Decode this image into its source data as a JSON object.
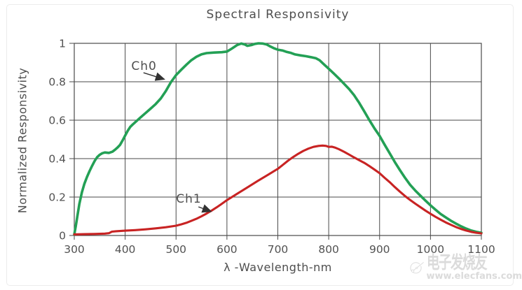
{
  "chart_data": {
    "type": "line",
    "title": "Spectral Responsivity",
    "xlabel": "λ -Wavelength-nm",
    "ylabel": "Normalized Responsivity",
    "xlim": [
      300,
      1100
    ],
    "ylim": [
      0,
      1
    ],
    "x_ticks": [
      300,
      400,
      500,
      600,
      700,
      800,
      900,
      1000,
      1100
    ],
    "y_ticks": [
      0,
      0.2,
      0.4,
      0.6,
      0.8,
      1
    ],
    "y_tick_labels": [
      "0",
      "0.2",
      "0.4",
      "0.6",
      "0.8",
      "1"
    ],
    "grid": true,
    "legend_position": "inline-annotations",
    "axis_color": "#4a4a4a",
    "tick_label_color": "#525252",
    "series": [
      {
        "name": "Ch0",
        "color": "#23A055",
        "points": [
          [
            300,
            0.005
          ],
          [
            303,
            0.05
          ],
          [
            306,
            0.1
          ],
          [
            310,
            0.165
          ],
          [
            315,
            0.225
          ],
          [
            320,
            0.27
          ],
          [
            325,
            0.305
          ],
          [
            330,
            0.335
          ],
          [
            335,
            0.362
          ],
          [
            340,
            0.388
          ],
          [
            345,
            0.408
          ],
          [
            350,
            0.42
          ],
          [
            355,
            0.428
          ],
          [
            360,
            0.432
          ],
          [
            368,
            0.43
          ],
          [
            375,
            0.436
          ],
          [
            380,
            0.446
          ],
          [
            385,
            0.458
          ],
          [
            390,
            0.472
          ],
          [
            395,
            0.495
          ],
          [
            400,
            0.52
          ],
          [
            405,
            0.545
          ],
          [
            410,
            0.565
          ],
          [
            415,
            0.578
          ],
          [
            420,
            0.59
          ],
          [
            430,
            0.614
          ],
          [
            440,
            0.637
          ],
          [
            450,
            0.66
          ],
          [
            460,
            0.684
          ],
          [
            470,
            0.713
          ],
          [
            480,
            0.752
          ],
          [
            490,
            0.798
          ],
          [
            500,
            0.835
          ],
          [
            510,
            0.862
          ],
          [
            520,
            0.888
          ],
          [
            530,
            0.912
          ],
          [
            540,
            0.93
          ],
          [
            550,
            0.943
          ],
          [
            560,
            0.949
          ],
          [
            575,
            0.952
          ],
          [
            590,
            0.954
          ],
          [
            600,
            0.957
          ],
          [
            610,
            0.973
          ],
          [
            620,
            0.991
          ],
          [
            628,
            0.999
          ],
          [
            635,
            0.994
          ],
          [
            640,
            0.987
          ],
          [
            648,
            0.991
          ],
          [
            655,
            0.997
          ],
          [
            662,
            1.0
          ],
          [
            670,
            0.999
          ],
          [
            678,
            0.994
          ],
          [
            685,
            0.984
          ],
          [
            692,
            0.975
          ],
          [
            700,
            0.967
          ],
          [
            710,
            0.962
          ],
          [
            718,
            0.955
          ],
          [
            726,
            0.95
          ],
          [
            734,
            0.942
          ],
          [
            745,
            0.937
          ],
          [
            755,
            0.933
          ],
          [
            765,
            0.928
          ],
          [
            775,
            0.922
          ],
          [
            782,
            0.912
          ],
          [
            790,
            0.892
          ],
          [
            800,
            0.868
          ],
          [
            810,
            0.843
          ],
          [
            820,
            0.817
          ],
          [
            830,
            0.79
          ],
          [
            840,
            0.762
          ],
          [
            850,
            0.73
          ],
          [
            860,
            0.69
          ],
          [
            870,
            0.645
          ],
          [
            880,
            0.6
          ],
          [
            890,
            0.557
          ],
          [
            900,
            0.518
          ],
          [
            910,
            0.472
          ],
          [
            920,
            0.427
          ],
          [
            930,
            0.382
          ],
          [
            940,
            0.34
          ],
          [
            950,
            0.3
          ],
          [
            960,
            0.264
          ],
          [
            970,
            0.234
          ],
          [
            980,
            0.208
          ],
          [
            990,
            0.182
          ],
          [
            1000,
            0.157
          ],
          [
            1010,
            0.134
          ],
          [
            1020,
            0.112
          ],
          [
            1030,
            0.094
          ],
          [
            1040,
            0.077
          ],
          [
            1050,
            0.062
          ],
          [
            1060,
            0.048
          ],
          [
            1070,
            0.036
          ],
          [
            1080,
            0.026
          ],
          [
            1090,
            0.019
          ],
          [
            1100,
            0.014
          ]
        ]
      },
      {
        "name": "Ch1",
        "color": "#C82323",
        "points": [
          [
            300,
            0.006
          ],
          [
            320,
            0.007
          ],
          [
            340,
            0.008
          ],
          [
            360,
            0.01
          ],
          [
            368,
            0.012
          ],
          [
            374,
            0.02
          ],
          [
            382,
            0.022
          ],
          [
            400,
            0.025
          ],
          [
            420,
            0.028
          ],
          [
            440,
            0.032
          ],
          [
            460,
            0.037
          ],
          [
            480,
            0.043
          ],
          [
            500,
            0.051
          ],
          [
            510,
            0.058
          ],
          [
            520,
            0.066
          ],
          [
            530,
            0.076
          ],
          [
            540,
            0.087
          ],
          [
            550,
            0.1
          ],
          [
            560,
            0.114
          ],
          [
            570,
            0.13
          ],
          [
            580,
            0.147
          ],
          [
            590,
            0.165
          ],
          [
            600,
            0.184
          ],
          [
            620,
            0.217
          ],
          [
            640,
            0.25
          ],
          [
            660,
            0.283
          ],
          [
            680,
            0.315
          ],
          [
            700,
            0.347
          ],
          [
            710,
            0.368
          ],
          [
            720,
            0.389
          ],
          [
            730,
            0.408
          ],
          [
            740,
            0.425
          ],
          [
            750,
            0.44
          ],
          [
            760,
            0.452
          ],
          [
            770,
            0.461
          ],
          [
            780,
            0.466
          ],
          [
            788,
            0.468
          ],
          [
            795,
            0.466
          ],
          [
            800,
            0.461
          ],
          [
            806,
            0.462
          ],
          [
            812,
            0.458
          ],
          [
            820,
            0.449
          ],
          [
            830,
            0.436
          ],
          [
            840,
            0.421
          ],
          [
            850,
            0.406
          ],
          [
            860,
            0.392
          ],
          [
            870,
            0.378
          ],
          [
            880,
            0.361
          ],
          [
            890,
            0.343
          ],
          [
            900,
            0.324
          ],
          [
            910,
            0.3
          ],
          [
            920,
            0.277
          ],
          [
            930,
            0.252
          ],
          [
            940,
            0.228
          ],
          [
            950,
            0.205
          ],
          [
            960,
            0.185
          ],
          [
            970,
            0.166
          ],
          [
            980,
            0.148
          ],
          [
            990,
            0.13
          ],
          [
            1000,
            0.113
          ],
          [
            1010,
            0.097
          ],
          [
            1020,
            0.082
          ],
          [
            1030,
            0.068
          ],
          [
            1040,
            0.056
          ],
          [
            1050,
            0.044
          ],
          [
            1060,
            0.034
          ],
          [
            1070,
            0.026
          ],
          [
            1080,
            0.019
          ],
          [
            1090,
            0.014
          ],
          [
            1100,
            0.011
          ]
        ]
      }
    ],
    "annotations": [
      {
        "label": "Ch0",
        "label_x": 412,
        "label_y": 0.862,
        "arrow_from_x": 436,
        "arrow_from_y": 0.847,
        "arrow_to_x": 477,
        "arrow_to_y": 0.813
      },
      {
        "label": "Ch1",
        "label_x": 500,
        "label_y": 0.171,
        "arrow_from_x": 544,
        "arrow_from_y": 0.149,
        "arrow_to_x": 569,
        "arrow_to_y": 0.125
      }
    ]
  },
  "watermark": {
    "brand_cn": "电子发烧友",
    "brand_url": "www.elecfans.com",
    "color": "#dbdbdb"
  }
}
